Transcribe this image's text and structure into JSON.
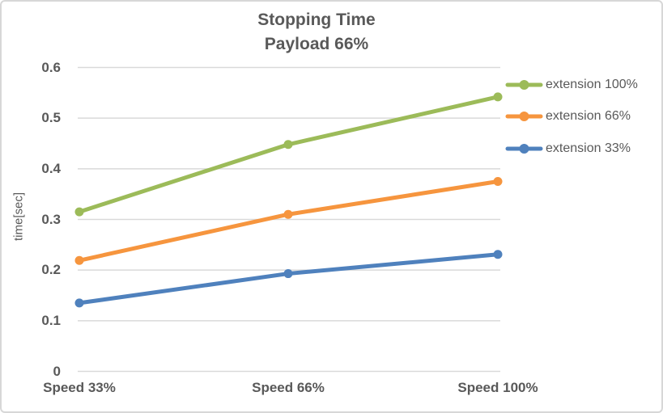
{
  "chart_data": {
    "type": "line",
    "title": "Stopping Time",
    "subtitle": "Payload 66%",
    "xlabel": "",
    "ylabel": "time[sec]",
    "categories": [
      "Speed 33%",
      "Speed 66%",
      "Speed 100%"
    ],
    "series": [
      {
        "name": "extension 100%",
        "color": "#9CBB59",
        "values": [
          0.315,
          0.448,
          0.542
        ]
      },
      {
        "name": "extension 66%",
        "color": "#F6953E",
        "values": [
          0.219,
          0.31,
          0.375
        ]
      },
      {
        "name": "extension 33%",
        "color": "#4F81BD",
        "values": [
          0.135,
          0.193,
          0.231
        ]
      }
    ],
    "ylim": [
      0,
      0.6
    ],
    "y_ticks": [
      0,
      0.1,
      0.2,
      0.3,
      0.4,
      0.5,
      0.6
    ],
    "y_tick_labels": [
      "0",
      "0.1",
      "0.2",
      "0.3",
      "0.4",
      "0.5",
      "0.6"
    ],
    "grid": true,
    "gridline_color": "#D9D9D9",
    "text_color": "#595959",
    "border_color": "#D7D7D7",
    "legend_position": "right",
    "marker": "circle"
  }
}
